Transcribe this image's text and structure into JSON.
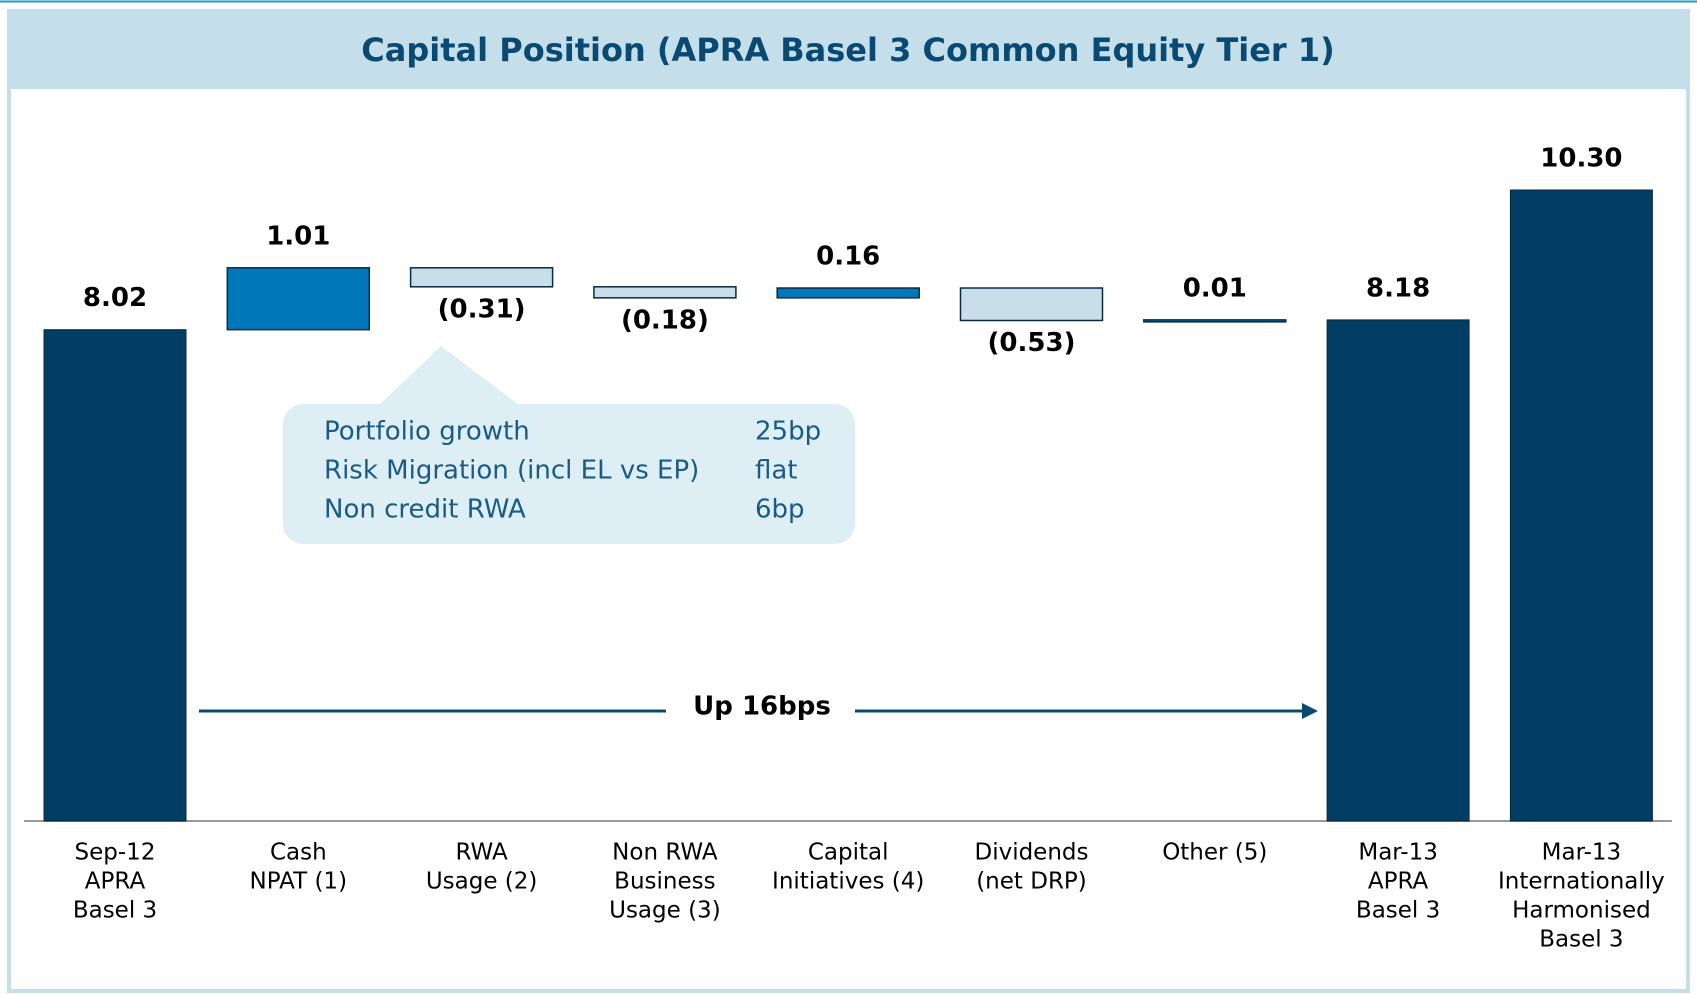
{
  "chart_data": {
    "type": "waterfall",
    "title": "Capital Position (APRA Basel 3 Common Equity Tier 1)",
    "categories": [
      [
        "Sep-12",
        "APRA",
        "Basel 3"
      ],
      [
        "Cash",
        "NPAT (1)"
      ],
      [
        "RWA",
        "Usage (2)"
      ],
      [
        "Non RWA",
        "Business",
        "Usage (3)"
      ],
      [
        "Capital",
        "Initiatives (4)"
      ],
      [
        "Dividends",
        "(net DRP)"
      ],
      [
        "Other (5)"
      ],
      [
        "Mar-13",
        "APRA",
        "Basel 3"
      ],
      [
        "Mar-13",
        "Internationally",
        "Harmonised",
        "Basel 3"
      ]
    ],
    "values": [
      8.02,
      1.01,
      -0.31,
      -0.18,
      0.16,
      -0.53,
      0.01,
      8.18,
      10.3
    ],
    "value_labels": [
      "8.02",
      "1.01",
      "(0.31)",
      "(0.18)",
      "0.16",
      "(0.53)",
      "0.01",
      "8.18",
      "10.30"
    ],
    "measure": [
      "total",
      "relative",
      "relative",
      "relative",
      "relative",
      "relative",
      "relative",
      "total",
      "total"
    ],
    "colors": {
      "total": "#003f63",
      "increase": "#0077b8",
      "decrease": "#c8dfea"
    },
    "annotations": [
      {
        "rows": [
          [
            "Portfolio growth",
            "25bp"
          ],
          [
            "Risk Migration (incl EL vs EP)",
            "flat"
          ],
          [
            "Non credit RWA",
            "6bp"
          ]
        ]
      },
      {
        "text": "Up 16bps"
      }
    ]
  }
}
